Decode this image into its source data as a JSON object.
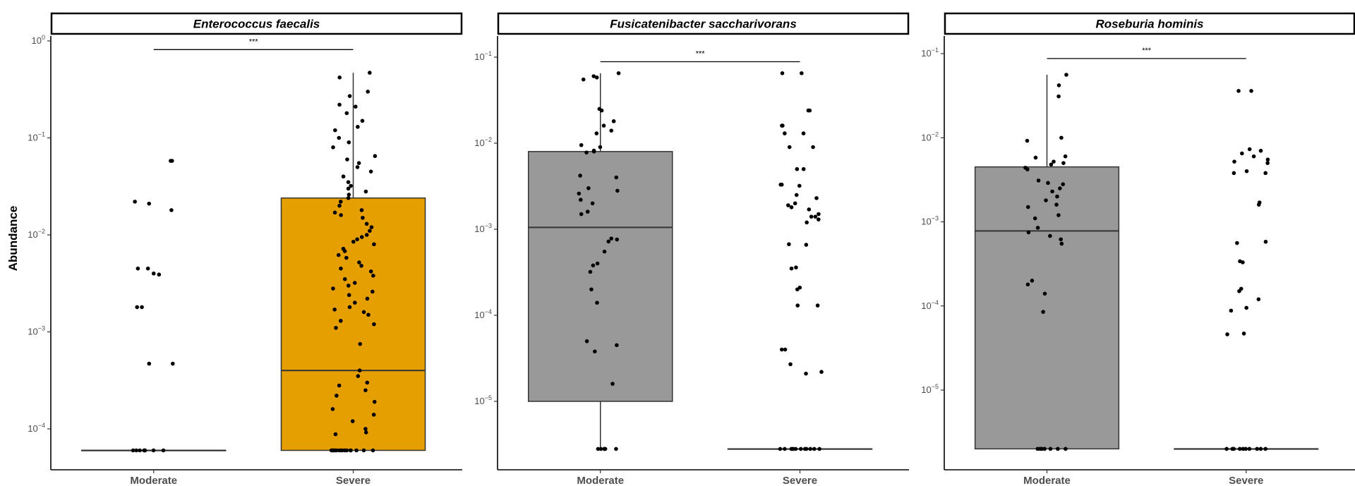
{
  "chart_data": [
    {
      "type": "box",
      "title": "Enterococcus faecalis",
      "ylabel": "Abundance",
      "y_scale": "log10",
      "ylim": [
        4e-05,
        1.3
      ],
      "y_ticks": [
        {
          "value": 0.0001,
          "base": "10",
          "exp": "−4"
        },
        {
          "value": 0.001,
          "base": "10",
          "exp": "−3"
        },
        {
          "value": 0.01,
          "base": "10",
          "exp": "−2"
        },
        {
          "value": 0.1,
          "base": "10",
          "exp": "−1"
        },
        {
          "value": 1,
          "base": "10",
          "exp": "0"
        }
      ],
      "categories": [
        "Moderate",
        "Severe"
      ],
      "significance": "***",
      "boxes": [
        {
          "category": "Moderate",
          "min": 6e-05,
          "q1": 6e-05,
          "median": 6e-05,
          "q3": 6e-05,
          "max": 6e-05,
          "color": "#999999"
        },
        {
          "category": "Severe",
          "min": 6e-05,
          "q1": 6e-05,
          "median": 0.0004,
          "q3": 0.024,
          "max": 0.47,
          "color": "#E69F00"
        }
      ],
      "points": {
        "Moderate": [
          0.058,
          0.058,
          0.022,
          0.021,
          0.018,
          0.0045,
          0.0045,
          0.004,
          0.0039,
          0.0018,
          0.0018,
          0.00047,
          0.00047,
          6e-05,
          6e-05,
          6e-05,
          6e-05,
          6e-05,
          6e-05,
          6e-05,
          6e-05
        ],
        "Severe": [
          0.47,
          0.42,
          0.3,
          0.27,
          0.22,
          0.21,
          0.18,
          0.15,
          0.13,
          0.12,
          0.1,
          0.09,
          0.08,
          0.065,
          0.06,
          0.055,
          0.05,
          0.045,
          0.04,
          0.035,
          0.032,
          0.03,
          0.028,
          0.026,
          0.024,
          0.022,
          0.02,
          0.018,
          0.017,
          0.016,
          0.015,
          0.013,
          0.012,
          0.011,
          0.01,
          0.0095,
          0.009,
          0.0085,
          0.008,
          0.0072,
          0.0068,
          0.0062,
          0.0058,
          0.0052,
          0.0048,
          0.0045,
          0.0042,
          0.0038,
          0.0035,
          0.0032,
          0.003,
          0.0028,
          0.0026,
          0.0024,
          0.0022,
          0.002,
          0.0018,
          0.0017,
          0.0016,
          0.0015,
          0.0013,
          0.0012,
          0.0011,
          0.00075,
          0.0004,
          0.00035,
          0.0003,
          0.00028,
          0.00025,
          0.00022,
          0.00019,
          0.00016,
          0.00014,
          0.00012,
          0.0001,
          9.2e-05,
          8.8e-05,
          6e-05,
          6e-05,
          6e-05,
          6e-05,
          6e-05,
          6e-05,
          6e-05,
          6e-05,
          6e-05,
          6e-05,
          6e-05,
          6e-05,
          6e-05,
          6e-05,
          6e-05,
          6e-05
        ]
      }
    },
    {
      "type": "box",
      "title": "Fusicatenibacter saccharivorans",
      "y_scale": "log10",
      "ylim": [
        1.8e-06,
        0.15
      ],
      "y_ticks": [
        {
          "value": 1e-05,
          "base": "10",
          "exp": "−5"
        },
        {
          "value": 0.0001,
          "base": "10",
          "exp": "−4"
        },
        {
          "value": 0.001,
          "base": "10",
          "exp": "−3"
        },
        {
          "value": 0.01,
          "base": "10",
          "exp": "−2"
        },
        {
          "value": 0.1,
          "base": "10",
          "exp": "−1"
        }
      ],
      "categories": [
        "Moderate",
        "Severe"
      ],
      "significance": "***",
      "boxes": [
        {
          "category": "Moderate",
          "min": 2.8e-06,
          "q1": 1e-05,
          "median": 0.00105,
          "q3": 0.008,
          "max": 0.065,
          "color": "#999999"
        },
        {
          "category": "Severe",
          "min": 2.8e-06,
          "q1": 2.8e-06,
          "median": 2.8e-06,
          "q3": 2.8e-06,
          "max": 2.8e-06,
          "color": "#999999"
        }
      ],
      "points": {
        "Moderate": [
          0.065,
          0.06,
          0.058,
          0.055,
          0.025,
          0.024,
          0.018,
          0.016,
          0.014,
          0.013,
          0.0095,
          0.009,
          0.0082,
          0.008,
          0.0078,
          0.0042,
          0.004,
          0.003,
          0.0028,
          0.0026,
          0.0022,
          0.002,
          0.0016,
          0.0015,
          0.00078,
          0.00076,
          0.00072,
          0.00055,
          0.0004,
          0.00038,
          0.00032,
          0.0002,
          0.00014,
          5e-05,
          4.5e-05,
          3.8e-05,
          1.6e-05,
          2.8e-06,
          2.8e-06,
          2.8e-06,
          2.8e-06,
          2.8e-06,
          2.8e-06
        ],
        "Severe": [
          0.065,
          0.065,
          0.024,
          0.024,
          0.016,
          0.016,
          0.013,
          0.013,
          0.009,
          0.009,
          0.005,
          0.005,
          0.0033,
          0.0033,
          0.0032,
          0.0025,
          0.0023,
          0.002,
          0.0019,
          0.0018,
          0.0017,
          0.0015,
          0.0014,
          0.0014,
          0.0013,
          0.0012,
          0.00067,
          0.00066,
          0.00036,
          0.00035,
          0.00021,
          0.0002,
          0.00013,
          0.00013,
          4e-05,
          4e-05,
          2.7e-05,
          2.2e-05,
          2.1e-05,
          2.8e-06,
          2.8e-06,
          2.8e-06,
          2.8e-06,
          2.8e-06,
          2.8e-06,
          2.8e-06,
          2.8e-06,
          2.8e-06,
          2.8e-06,
          2.8e-06,
          2.8e-06
        ]
      }
    },
    {
      "type": "box",
      "title": "Roseburia hominis",
      "y_scale": "log10",
      "ylim": [
        1.1e-06,
        0.15
      ],
      "y_ticks": [
        {
          "value": 1e-05,
          "base": "10",
          "exp": "−5"
        },
        {
          "value": 0.0001,
          "base": "10",
          "exp": "−4"
        },
        {
          "value": 0.001,
          "base": "10",
          "exp": "−3"
        },
        {
          "value": 0.01,
          "base": "10",
          "exp": "−2"
        },
        {
          "value": 0.1,
          "base": "10",
          "exp": "−1"
        }
      ],
      "categories": [
        "Moderate",
        "Severe"
      ],
      "significance": "***",
      "boxes": [
        {
          "category": "Moderate",
          "min": 2e-06,
          "q1": 2e-06,
          "median": 0.00078,
          "q3": 0.0045,
          "max": 0.056,
          "color": "#999999"
        },
        {
          "category": "Severe",
          "min": 2e-06,
          "q1": 2e-06,
          "median": 2e-06,
          "q3": 2e-06,
          "max": 2e-06,
          "color": "#999999"
        }
      ],
      "points": {
        "Moderate": [
          0.056,
          0.042,
          0.031,
          0.01,
          0.0092,
          0.006,
          0.0058,
          0.0052,
          0.005,
          0.0048,
          0.0044,
          0.0042,
          0.0031,
          0.0029,
          0.0028,
          0.0025,
          0.0023,
          0.002,
          0.0018,
          0.0016,
          0.0015,
          0.0012,
          0.0011,
          0.00085,
          0.00075,
          0.00068,
          0.00062,
          0.00055,
          0.0002,
          0.00018,
          0.00014,
          8.5e-05,
          2e-06,
          2e-06,
          2e-06,
          2e-06,
          2e-06,
          2e-06,
          2e-06
        ],
        "Severe": [
          0.036,
          0.036,
          0.0073,
          0.007,
          0.0065,
          0.006,
          0.0055,
          0.0052,
          0.005,
          0.004,
          0.0038,
          0.0038,
          0.0017,
          0.0016,
          0.00058,
          0.00056,
          0.00034,
          0.00033,
          0.00016,
          0.00015,
          0.00012,
          9.5e-05,
          8.8e-05,
          4.7e-05,
          4.6e-05,
          2e-06,
          2e-06,
          2e-06,
          2e-06,
          2e-06,
          2e-06,
          2e-06,
          2e-06,
          2e-06,
          2e-06
        ]
      }
    }
  ]
}
